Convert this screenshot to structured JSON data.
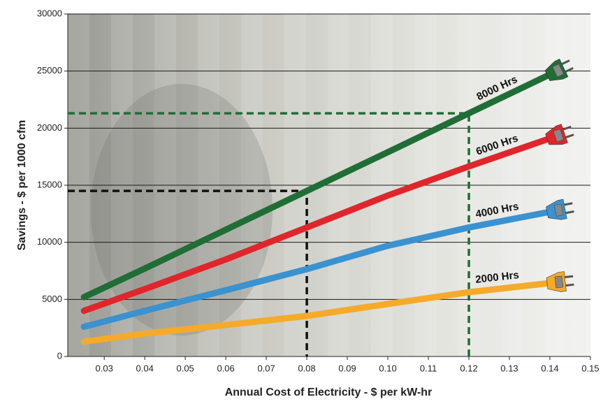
{
  "chart_data": {
    "type": "line",
    "x_label": "Annual Cost of Electricity - $ per kW-hr",
    "y_label": "Savings - $ per 1000 cfm",
    "x": [
      0.025,
      0.04,
      0.06,
      0.08,
      0.1,
      0.12,
      0.14
    ],
    "series": [
      {
        "name": "8000 Hrs",
        "color": "#1f6e35",
        "values": [
          5200,
          7700,
          11100,
          14500,
          17900,
          21300,
          24700
        ]
      },
      {
        "name": "6000 Hrs",
        "color": "#e0262b",
        "values": [
          4000,
          5900,
          8500,
          11300,
          14100,
          16650,
          19100
        ]
      },
      {
        "name": "4000 Hrs",
        "color": "#3a92d0",
        "values": [
          2600,
          4000,
          5800,
          7650,
          9700,
          11300,
          12670
        ]
      },
      {
        "name": "2000 Hrs",
        "color": "#f5aa2a",
        "values": [
          1300,
          2000,
          2750,
          3550,
          4600,
          5630,
          6430
        ]
      }
    ],
    "reference_lines": [
      {
        "x": 0.08,
        "y": 14500,
        "color": "#111111"
      },
      {
        "x": 0.12,
        "y": 21300,
        "color": "#1f6e35"
      }
    ],
    "xlim": [
      0.021,
      0.15
    ],
    "xticks": [
      0.03,
      0.04,
      0.05,
      0.06,
      0.07,
      0.08,
      0.09,
      {
        "value": 0.1,
        "label": "0.10"
      },
      0.11,
      0.12,
      0.13,
      0.14,
      0.15
    ],
    "ylim": [
      0,
      30000
    ],
    "yticks": [
      0,
      5000,
      10000,
      15000,
      20000,
      25000,
      30000
    ],
    "grid": true
  }
}
